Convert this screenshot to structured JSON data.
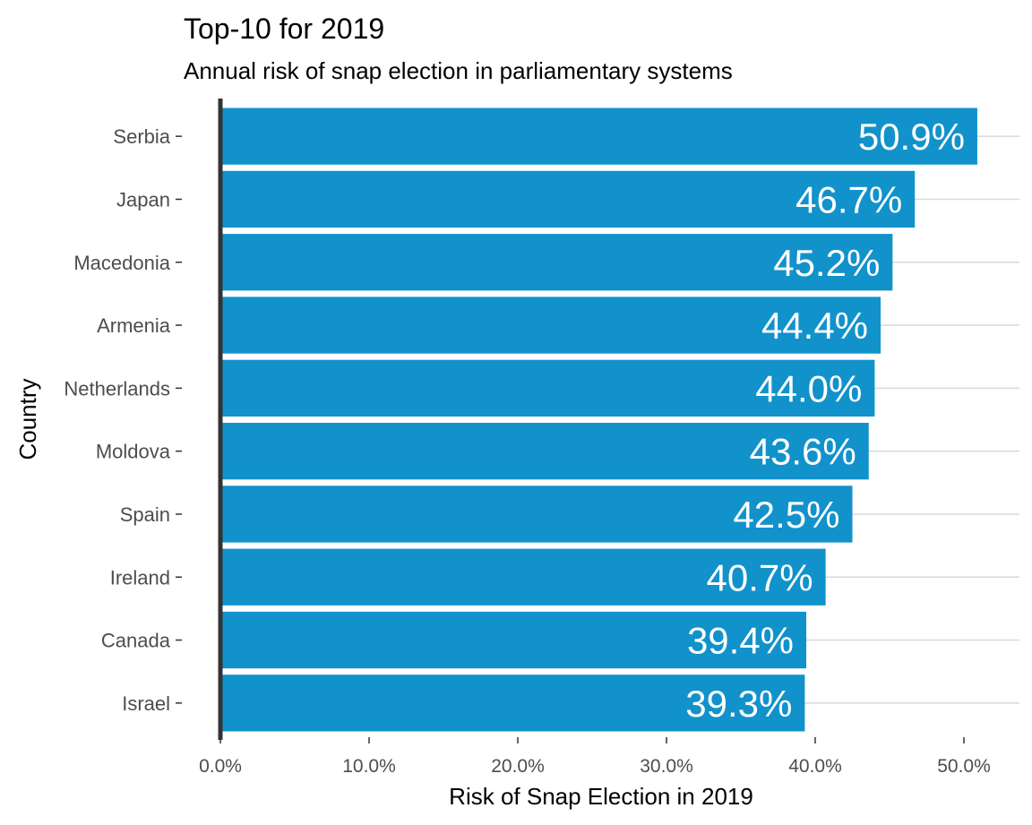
{
  "chart_data": {
    "type": "bar",
    "orientation": "horizontal",
    "title": "Top-10 for 2019",
    "subtitle": "Annual risk of snap election in parliamentary systems",
    "xlabel": "Risk of Snap Election in 2019",
    "ylabel": "Country",
    "categories": [
      "Serbia",
      "Japan",
      "Macedonia",
      "Armenia",
      "Netherlands",
      "Moldova",
      "Spain",
      "Ireland",
      "Canada",
      "Israel"
    ],
    "values": [
      50.9,
      46.7,
      45.2,
      44.4,
      44.0,
      43.6,
      42.5,
      40.7,
      39.4,
      39.3
    ],
    "value_labels": [
      "50.9%",
      "46.7%",
      "45.2%",
      "44.4%",
      "44.0%",
      "43.6%",
      "42.5%",
      "40.7%",
      "39.4%",
      "39.3%"
    ],
    "xlim": [
      0,
      53.5
    ],
    "x_ticks": [
      0,
      10,
      20,
      30,
      40,
      50
    ],
    "x_tick_labels": [
      "0.0%",
      "10.0%",
      "20.0%",
      "30.0%",
      "40.0%",
      "50.0%"
    ],
    "grid": "horizontal",
    "legend": "none",
    "bar_color": "#1192cb",
    "label_color": "#ffffff",
    "axis_line_color": "#333333"
  }
}
